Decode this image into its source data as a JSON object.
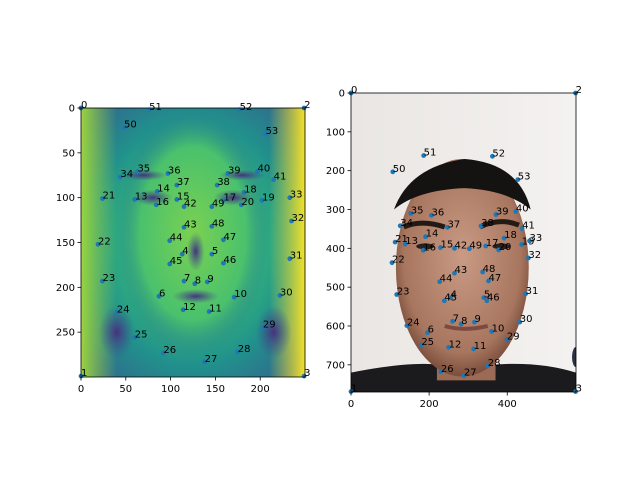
{
  "chart_data": [
    {
      "type": "scatter",
      "panel": "left",
      "background": "viridis-face-heatmap",
      "xlim": [
        0,
        250
      ],
      "ylim": [
        300,
        0
      ],
      "xticks": [
        0,
        50,
        100,
        150,
        200
      ],
      "yticks": [
        0,
        50,
        100,
        150,
        200,
        250
      ],
      "grid": false,
      "point_color": "#1f77b4",
      "points": [
        {
          "label": "0",
          "x": 0,
          "y": 0
        },
        {
          "label": "1",
          "x": 0,
          "y": 299
        },
        {
          "label": "2",
          "x": 249,
          "y": 0
        },
        {
          "label": "3",
          "x": 249,
          "y": 299
        },
        {
          "label": "4",
          "x": 113,
          "y": 163
        },
        {
          "label": "5",
          "x": 146,
          "y": 163
        },
        {
          "label": "6",
          "x": 87,
          "y": 210
        },
        {
          "label": "7",
          "x": 115,
          "y": 193
        },
        {
          "label": "8",
          "x": 127,
          "y": 196
        },
        {
          "label": "9",
          "x": 141,
          "y": 194
        },
        {
          "label": "10",
          "x": 171,
          "y": 211
        },
        {
          "label": "11",
          "x": 143,
          "y": 227
        },
        {
          "label": "12",
          "x": 114,
          "y": 225
        },
        {
          "label": "13",
          "x": 60,
          "y": 102
        },
        {
          "label": "14",
          "x": 85,
          "y": 93
        },
        {
          "label": "15",
          "x": 107,
          "y": 102
        },
        {
          "label": "16",
          "x": 84,
          "y": 108
        },
        {
          "label": "17",
          "x": 159,
          "y": 103
        },
        {
          "label": "18",
          "x": 182,
          "y": 94
        },
        {
          "label": "19",
          "x": 202,
          "y": 103
        },
        {
          "label": "20",
          "x": 179,
          "y": 108
        },
        {
          "label": "21",
          "x": 24,
          "y": 101
        },
        {
          "label": "22",
          "x": 19,
          "y": 152
        },
        {
          "label": "23",
          "x": 24,
          "y": 193
        },
        {
          "label": "24",
          "x": 40,
          "y": 228
        },
        {
          "label": "25",
          "x": 60,
          "y": 256
        },
        {
          "label": "26",
          "x": 92,
          "y": 273
        },
        {
          "label": "27",
          "x": 138,
          "y": 283
        },
        {
          "label": "28",
          "x": 175,
          "y": 272
        },
        {
          "label": "29",
          "x": 203,
          "y": 245
        },
        {
          "label": "30",
          "x": 222,
          "y": 209
        },
        {
          "label": "31",
          "x": 233,
          "y": 168
        },
        {
          "label": "32",
          "x": 235,
          "y": 126
        },
        {
          "label": "33",
          "x": 233,
          "y": 100
        },
        {
          "label": "34",
          "x": 44,
          "y": 77
        },
        {
          "label": "35",
          "x": 63,
          "y": 71
        },
        {
          "label": "36",
          "x": 97,
          "y": 73
        },
        {
          "label": "37",
          "x": 107,
          "y": 86
        },
        {
          "label": "38",
          "x": 152,
          "y": 86
        },
        {
          "label": "39",
          "x": 164,
          "y": 73
        },
        {
          "label": "40",
          "x": 197,
          "y": 71
        },
        {
          "label": "41",
          "x": 215,
          "y": 80
        },
        {
          "label": "42",
          "x": 115,
          "y": 110
        },
        {
          "label": "43",
          "x": 115,
          "y": 133
        },
        {
          "label": "44",
          "x": 99,
          "y": 148
        },
        {
          "label": "45",
          "x": 99,
          "y": 174
        },
        {
          "label": "46",
          "x": 159,
          "y": 173
        },
        {
          "label": "47",
          "x": 159,
          "y": 147
        },
        {
          "label": "48",
          "x": 146,
          "y": 132
        },
        {
          "label": "49",
          "x": 146,
          "y": 110
        },
        {
          "label": "50",
          "x": 48,
          "y": 22
        },
        {
          "label": "51",
          "x": 76,
          "y": 2
        },
        {
          "label": "52",
          "x": 177,
          "y": 2
        },
        {
          "label": "53",
          "x": 206,
          "y": 29
        }
      ]
    },
    {
      "type": "scatter",
      "panel": "right",
      "background": "face-photograph",
      "xlim": [
        0,
        576
      ],
      "ylim": [
        770,
        0
      ],
      "xticks": [
        0,
        200,
        400
      ],
      "yticks": [
        0,
        100,
        200,
        300,
        400,
        500,
        600,
        700
      ],
      "grid": false,
      "point_color": "#1f77b4",
      "points": [
        {
          "label": "0",
          "x": 0,
          "y": 0
        },
        {
          "label": "1",
          "x": 0,
          "y": 769
        },
        {
          "label": "2",
          "x": 575,
          "y": 0
        },
        {
          "label": "3",
          "x": 575,
          "y": 769
        },
        {
          "label": "4",
          "x": 255,
          "y": 527
        },
        {
          "label": "5",
          "x": 340,
          "y": 527
        },
        {
          "label": "6",
          "x": 196,
          "y": 617
        },
        {
          "label": "7",
          "x": 260,
          "y": 588
        },
        {
          "label": "8",
          "x": 282,
          "y": 595
        },
        {
          "label": "9",
          "x": 316,
          "y": 590
        },
        {
          "label": "10",
          "x": 360,
          "y": 614
        },
        {
          "label": "11",
          "x": 314,
          "y": 659
        },
        {
          "label": "12",
          "x": 250,
          "y": 655
        },
        {
          "label": "13",
          "x": 139,
          "y": 389
        },
        {
          "label": "14",
          "x": 191,
          "y": 370
        },
        {
          "label": "15",
          "x": 229,
          "y": 398
        },
        {
          "label": "16",
          "x": 185,
          "y": 405
        },
        {
          "label": "17",
          "x": 345,
          "y": 394
        },
        {
          "label": "18",
          "x": 392,
          "y": 374
        },
        {
          "label": "19",
          "x": 437,
          "y": 390
        },
        {
          "label": "20",
          "x": 378,
          "y": 404
        },
        {
          "label": "21",
          "x": 113,
          "y": 384
        },
        {
          "label": "22",
          "x": 105,
          "y": 437
        },
        {
          "label": "23",
          "x": 117,
          "y": 519
        },
        {
          "label": "24",
          "x": 143,
          "y": 599
        },
        {
          "label": "25",
          "x": 180,
          "y": 649
        },
        {
          "label": "26",
          "x": 230,
          "y": 718
        },
        {
          "label": "27",
          "x": 289,
          "y": 728
        },
        {
          "label": "28",
          "x": 350,
          "y": 703
        },
        {
          "label": "29",
          "x": 399,
          "y": 635
        },
        {
          "label": "30",
          "x": 432,
          "y": 590
        },
        {
          "label": "31",
          "x": 447,
          "y": 517
        },
        {
          "label": "32",
          "x": 454,
          "y": 425
        },
        {
          "label": "33",
          "x": 457,
          "y": 381
        },
        {
          "label": "34",
          "x": 126,
          "y": 342
        },
        {
          "label": "35",
          "x": 153,
          "y": 310
        },
        {
          "label": "36",
          "x": 206,
          "y": 315
        },
        {
          "label": "37",
          "x": 247,
          "y": 346
        },
        {
          "label": "38",
          "x": 333,
          "y": 343
        },
        {
          "label": "39",
          "x": 371,
          "y": 313
        },
        {
          "label": "40",
          "x": 422,
          "y": 305
        },
        {
          "label": "41",
          "x": 438,
          "y": 349
        },
        {
          "label": "42",
          "x": 265,
          "y": 400
        },
        {
          "label": "43",
          "x": 265,
          "y": 464
        },
        {
          "label": "44",
          "x": 227,
          "y": 486
        },
        {
          "label": "45",
          "x": 239,
          "y": 535
        },
        {
          "label": "46",
          "x": 348,
          "y": 535
        },
        {
          "label": "47",
          "x": 352,
          "y": 484
        },
        {
          "label": "48",
          "x": 337,
          "y": 461
        },
        {
          "label": "49",
          "x": 303,
          "y": 401
        },
        {
          "label": "50",
          "x": 107,
          "y": 203
        },
        {
          "label": "51",
          "x": 186,
          "y": 161
        },
        {
          "label": "52",
          "x": 362,
          "y": 163
        },
        {
          "label": "53",
          "x": 427,
          "y": 223
        }
      ]
    }
  ]
}
